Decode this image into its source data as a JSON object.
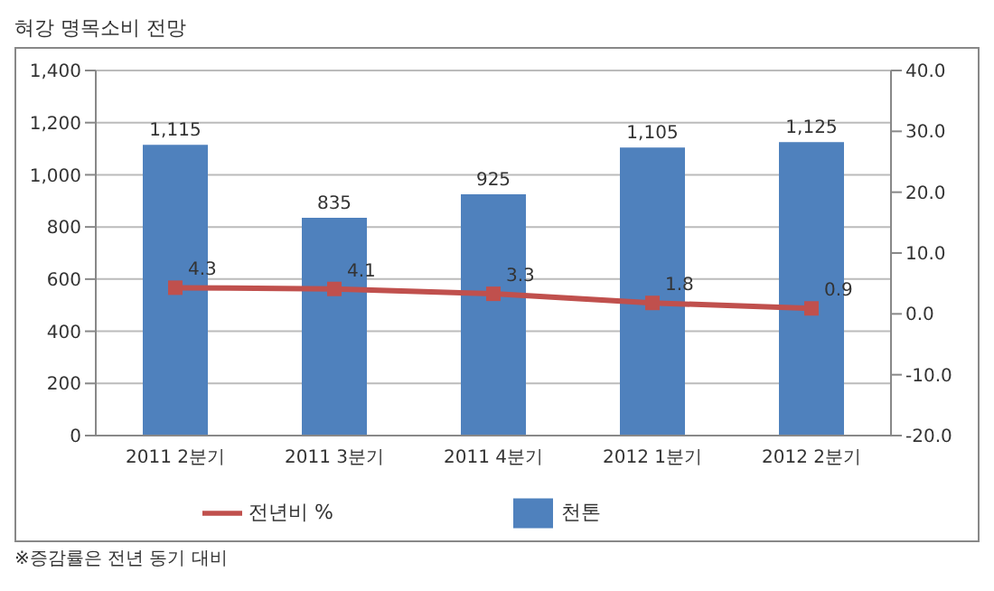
{
  "chart_data": {
    "type": "bar",
    "title": "혀강 명목소비 전망",
    "categories": [
      "2011 2분기",
      "2011 3분기",
      "2011 4분기",
      "2012 1분기",
      "2012 2분기"
    ],
    "series": [
      {
        "name": "천톤",
        "color": "#4f81bd",
        "values": [
          1115,
          835,
          925,
          1105,
          1125
        ],
        "value_labels": [
          "1,115",
          "835",
          "925",
          "1,105",
          "1,125"
        ]
      },
      {
        "name": "전년비 %",
        "type": "line",
        "axis": "y2",
        "color": "#c0504d",
        "marker": "square",
        "values": [
          4.3,
          4.1,
          3.3,
          1.8,
          0.9
        ]
      }
    ],
    "ylim": [
      0,
      1400
    ],
    "yticks": [
      0,
      {
        "value": 200,
        "label": "200"
      },
      {
        "value": 400,
        "label": "400"
      },
      {
        "value": 600,
        "label": "600"
      },
      {
        "value": 800,
        "label": "800"
      },
      {
        "value": 1000,
        "label": "1,000"
      },
      {
        "value": 1200,
        "label": "1,200"
      },
      {
        "value": 1400,
        "label": "1,400"
      }
    ],
    "y2lim": [
      -20,
      40
    ],
    "y2ticks": [
      {
        "value": -20,
        "label": "-20.0"
      },
      {
        "value": -10,
        "label": "-10.0"
      },
      {
        "value": 0,
        "label": "0.0"
      },
      {
        "value": 10,
        "label": "10.0"
      },
      {
        "value": 20,
        "label": "20.0"
      },
      {
        "value": 30,
        "label": "30.0"
      },
      {
        "value": 40,
        "label": "40.0"
      }
    ],
    "grid": "y",
    "legend": "bottom",
    "data_labels": true,
    "annotations": [
      "※증감률은 전년 동기 대비"
    ]
  }
}
